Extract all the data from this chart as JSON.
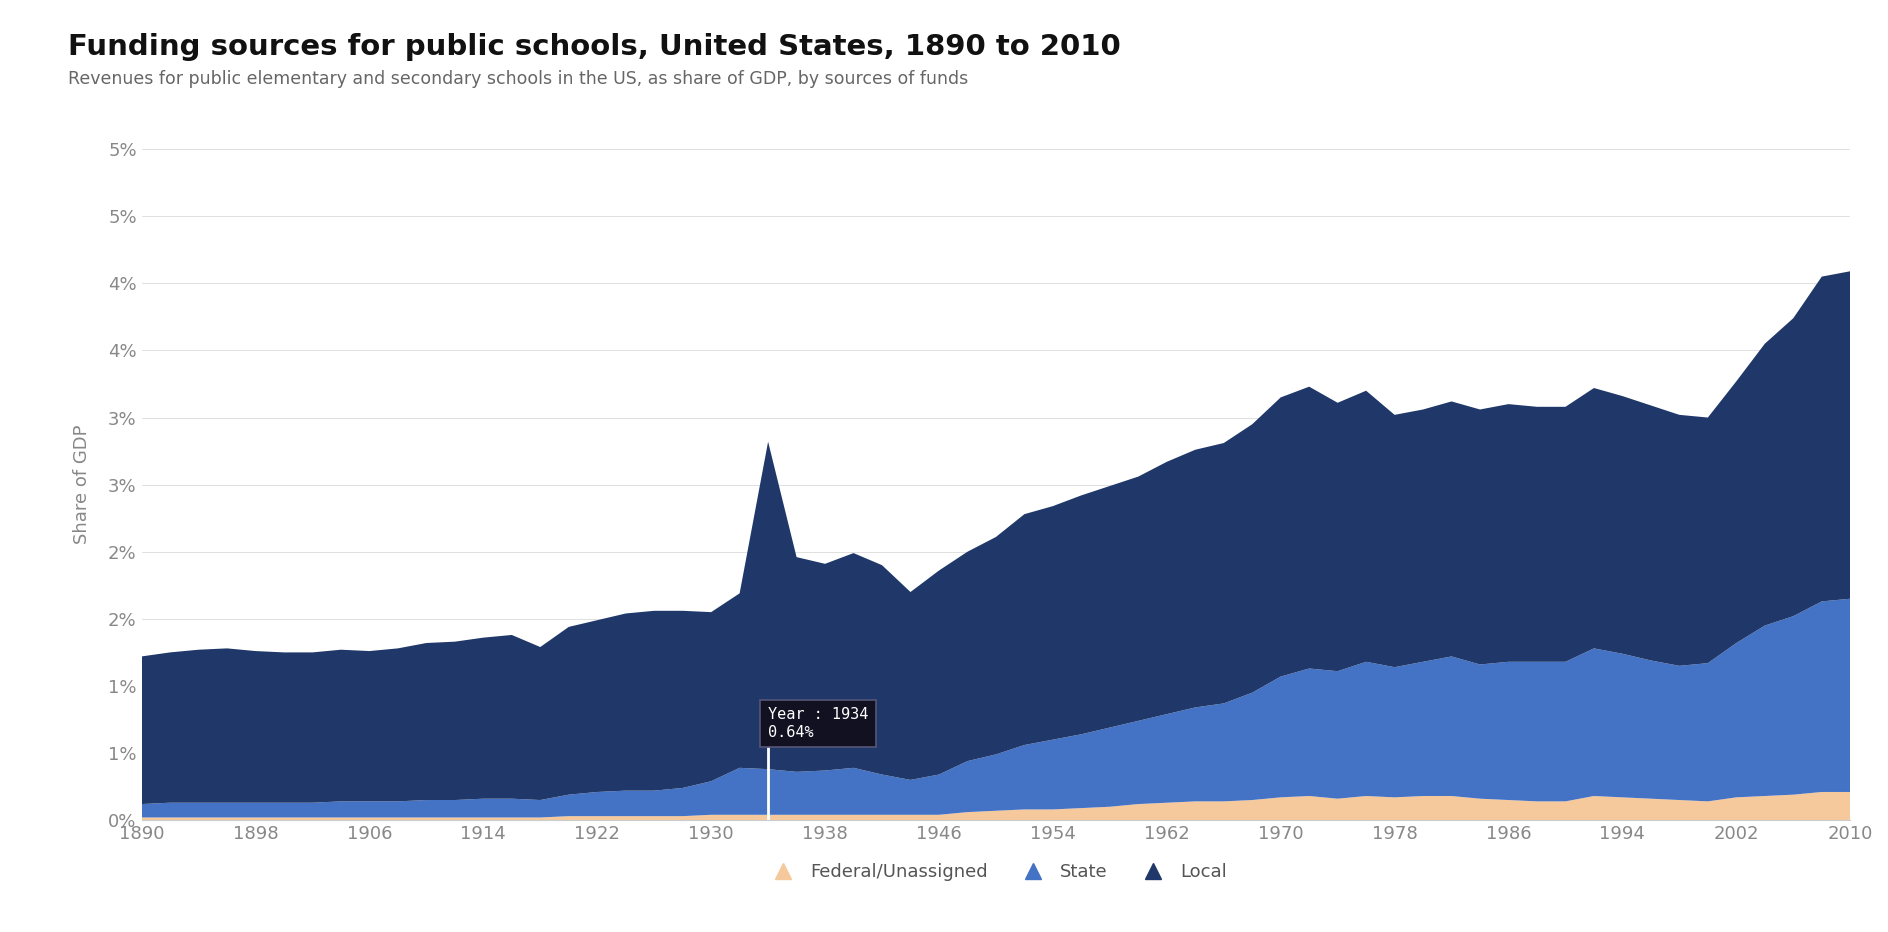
{
  "title": "Funding sources for public schools, United States, 1890 to 2010",
  "subtitle": "Revenues for public elementary and secondary schools in the US, as share of GDP, by sources of funds",
  "ylabel": "Share of GDP",
  "title_color": "#111111",
  "subtitle_color": "#666666",
  "accent_color": "#7B68EE",
  "background_color": "#ffffff",
  "years": [
    1890,
    1892,
    1894,
    1896,
    1898,
    1900,
    1902,
    1904,
    1906,
    1908,
    1910,
    1912,
    1914,
    1916,
    1918,
    1920,
    1922,
    1924,
    1926,
    1928,
    1930,
    1932,
    1934,
    1936,
    1938,
    1940,
    1942,
    1944,
    1946,
    1948,
    1950,
    1952,
    1954,
    1956,
    1958,
    1960,
    1962,
    1964,
    1966,
    1968,
    1970,
    1972,
    1974,
    1976,
    1978,
    1980,
    1982,
    1984,
    1986,
    1988,
    1990,
    1992,
    1994,
    1996,
    1998,
    2000,
    2002,
    2004,
    2006,
    2008,
    2010
  ],
  "federal": [
    0.02,
    0.02,
    0.02,
    0.02,
    0.02,
    0.02,
    0.02,
    0.02,
    0.02,
    0.02,
    0.02,
    0.02,
    0.02,
    0.02,
    0.02,
    0.03,
    0.03,
    0.03,
    0.03,
    0.03,
    0.04,
    0.04,
    0.04,
    0.04,
    0.04,
    0.04,
    0.04,
    0.04,
    0.04,
    0.06,
    0.07,
    0.08,
    0.08,
    0.09,
    0.1,
    0.12,
    0.13,
    0.14,
    0.14,
    0.15,
    0.17,
    0.18,
    0.16,
    0.18,
    0.17,
    0.18,
    0.18,
    0.16,
    0.15,
    0.14,
    0.14,
    0.18,
    0.17,
    0.16,
    0.15,
    0.14,
    0.17,
    0.18,
    0.19,
    0.21,
    0.21
  ],
  "state": [
    0.1,
    0.11,
    0.11,
    0.11,
    0.11,
    0.11,
    0.11,
    0.12,
    0.12,
    0.12,
    0.13,
    0.13,
    0.14,
    0.14,
    0.13,
    0.16,
    0.18,
    0.19,
    0.19,
    0.21,
    0.25,
    0.35,
    0.34,
    0.32,
    0.33,
    0.35,
    0.3,
    0.26,
    0.3,
    0.38,
    0.42,
    0.48,
    0.52,
    0.55,
    0.59,
    0.62,
    0.66,
    0.7,
    0.73,
    0.8,
    0.9,
    0.95,
    0.95,
    1.0,
    0.97,
    1.0,
    1.04,
    1.0,
    1.03,
    1.04,
    1.04,
    1.1,
    1.07,
    1.03,
    1.0,
    1.03,
    1.15,
    1.27,
    1.33,
    1.42,
    1.44
  ],
  "local": [
    1.1,
    1.12,
    1.14,
    1.15,
    1.13,
    1.12,
    1.12,
    1.13,
    1.12,
    1.14,
    1.17,
    1.18,
    1.2,
    1.22,
    1.14,
    1.25,
    1.28,
    1.32,
    1.34,
    1.32,
    1.26,
    1.3,
    2.44,
    1.6,
    1.54,
    1.6,
    1.56,
    1.4,
    1.52,
    1.56,
    1.62,
    1.72,
    1.74,
    1.78,
    1.8,
    1.82,
    1.88,
    1.92,
    1.94,
    2.0,
    2.08,
    2.1,
    2.0,
    2.02,
    1.88,
    1.88,
    1.9,
    1.9,
    1.92,
    1.9,
    1.9,
    1.94,
    1.92,
    1.9,
    1.87,
    1.83,
    1.95,
    2.1,
    2.22,
    2.42,
    2.44
  ],
  "federal_color": "#F5C99B",
  "state_color": "#4472C4",
  "local_color": "#1F3869",
  "tooltip_year": 1934,
  "tooltip_value": "0.64%",
  "xlim": [
    1890,
    2010
  ],
  "ylim": [
    0,
    5.0
  ],
  "xticks": [
    1890,
    1898,
    1906,
    1914,
    1922,
    1930,
    1938,
    1946,
    1954,
    1962,
    1970,
    1978,
    1986,
    1994,
    2002,
    2010
  ]
}
